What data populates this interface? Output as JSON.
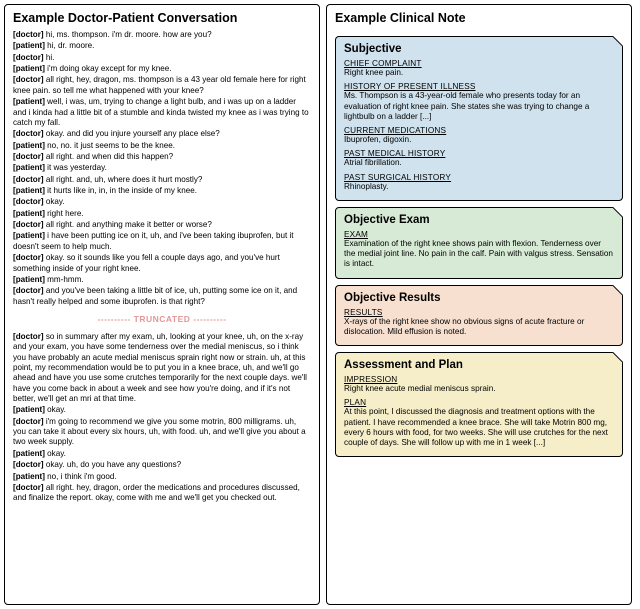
{
  "left": {
    "title": "Example Doctor-Patient Conversation",
    "turns1": [
      {
        "s": "doctor",
        "t": "hi, ms. thompson. i'm dr. moore. how are you?"
      },
      {
        "s": "patient",
        "t": "hi, dr. moore."
      },
      {
        "s": "doctor",
        "t": "hi."
      },
      {
        "s": "patient",
        "t": "i'm doing okay except for my knee."
      },
      {
        "s": "doctor",
        "t": "all right, hey, dragon, ms. thompson is a 43 year old female here for right knee pain. so tell me what happened with your knee?"
      },
      {
        "s": "patient",
        "t": "well, i was, um, trying to change a light bulb, and i was up on a ladder and i kinda had a little bit of a stumble and kinda twisted my knee as i was trying to catch my fall."
      },
      {
        "s": "doctor",
        "t": "okay. and did you injure yourself any place else?"
      },
      {
        "s": "patient",
        "t": "no, no. it just seems to be the knee."
      },
      {
        "s": "doctor",
        "t": "all right. and when did this happen?"
      },
      {
        "s": "patient",
        "t": "it was yesterday."
      },
      {
        "s": "doctor",
        "t": "all right. and, uh, where does it hurt mostly?"
      },
      {
        "s": "patient",
        "t": "it hurts like in, in, in the inside of my knee."
      },
      {
        "s": "doctor",
        "t": "okay."
      },
      {
        "s": "patient",
        "t": "right here."
      },
      {
        "s": "doctor",
        "t": "all right. and anything make it better or worse?"
      },
      {
        "s": "patient",
        "t": "i have been putting ice on it, uh, and i've been taking ibuprofen, but it doesn't seem to help much."
      },
      {
        "s": "doctor",
        "t": "okay. so it sounds like you fell a couple days ago, and you've hurt something inside of your right knee."
      },
      {
        "s": "patient",
        "t": "mm-hmm."
      },
      {
        "s": "doctor",
        "t": "and you've been taking a little bit of ice, uh, putting some ice on it, and hasn't really helped and some ibuprofen. is that right?"
      }
    ],
    "truncated": "---------- TRUNCATED ----------",
    "turns2": [
      {
        "s": "doctor",
        "t": "so in summary after my exam, uh, looking at your knee, uh, on the x-ray and your exam, you have some tenderness over the medial meniscus, so i think you have probably an acute medial meniscus sprain right now or strain. uh, at this point, my recommendation would be to put you in a knee brace, uh, and we'll go ahead and have you use some crutches temporarily for the next couple days. we'll have you come back in about a week and see how you're doing, and if it's not better, we'll get an mri at that time."
      },
      {
        "s": "patient",
        "t": "okay."
      },
      {
        "s": "doctor",
        "t": "i'm going to recommend we give you some motrin, 800 milligrams. uh, you can take it about every six hours, uh, with food. uh, and we'll give you about a two week supply."
      },
      {
        "s": "patient",
        "t": "okay."
      },
      {
        "s": "doctor",
        "t": "okay. uh, do you have any questions?"
      },
      {
        "s": "patient",
        "t": "no, i think i'm good."
      },
      {
        "s": "doctor",
        "t": "all right. hey, dragon, order the medications and procedures discussed, and finalize the report. okay, come with me and we'll get you checked out."
      }
    ]
  },
  "right": {
    "title": "Example Clinical Note",
    "boxes": [
      {
        "cls": "subjective",
        "title": "Subjective",
        "sections": [
          {
            "label": "CHIEF COMPLAINT",
            "body": "Right knee pain."
          },
          {
            "label": "HISTORY OF PRESENT ILLNESS",
            "body": "Ms. Thompson is a 43-year-old female who presents today for an evaluation of right knee pain. She states she was trying to change a lightbulb on a ladder [...]"
          },
          {
            "label": "CURRENT MEDICATIONS",
            "body": "Ibuprofen, digoxin."
          },
          {
            "label": "PAST MEDICAL HISTORY",
            "body": "Atrial fibrillation."
          },
          {
            "label": "PAST SURGICAL HISTORY",
            "body": "Rhinoplasty."
          }
        ]
      },
      {
        "cls": "objexam",
        "title": "Objective Exam",
        "sections": [
          {
            "label": "EXAM",
            "body": "Examination of the right knee shows pain with flexion. Tenderness over the medial joint line. No pain in the calf. Pain with valgus stress. Sensation is intact."
          }
        ]
      },
      {
        "cls": "objres",
        "title": "Objective Results",
        "sections": [
          {
            "label": "RESULTS",
            "body": "X-rays of the right knee show no obvious signs of acute fracture or dislocation. Mild effusion is noted."
          }
        ]
      },
      {
        "cls": "assess",
        "title": "Assessment and Plan",
        "sections": [
          {
            "label": "IMPRESSION",
            "body": "Right knee acute medial meniscus sprain."
          },
          {
            "label": "PLAN",
            "body": "At this point, I discussed the diagnosis and treatment options with the patient. I have recommended a knee brace. She will take Motrin 800 mg, every 6 hours with food, for two weeks. She will use crutches for the next couple of days. She will follow up with me in 1 week [...]"
          }
        ]
      }
    ]
  },
  "colors": {
    "subjective": "#cfe2ee",
    "objexam": "#d7ead6",
    "objres": "#f7e0d0",
    "assess": "#f6eec9",
    "trunc": "#e39797"
  }
}
